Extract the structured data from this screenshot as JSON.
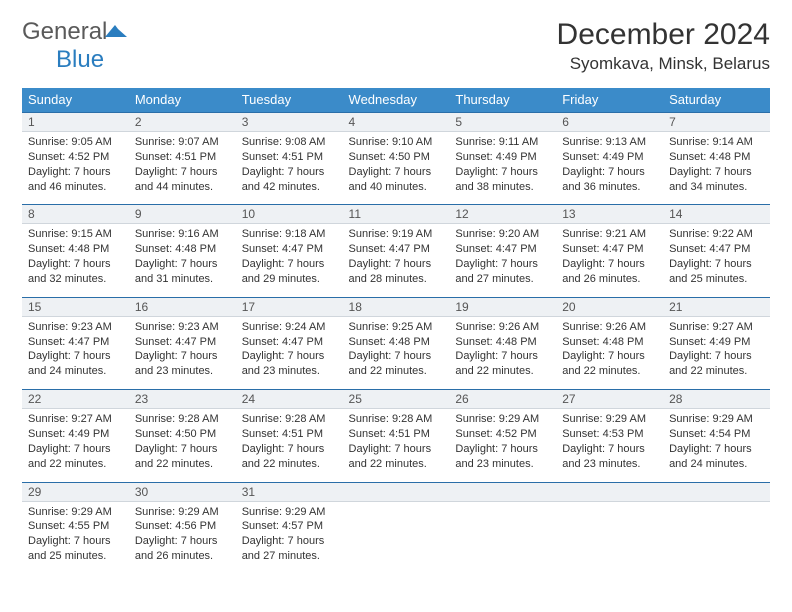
{
  "logo": {
    "word1": "General",
    "word2": "Blue"
  },
  "title": "December 2024",
  "location": "Syomkava, Minsk, Belarus",
  "colors": {
    "header_bg": "#3b8bc9",
    "header_text": "#ffffff",
    "numbar_bg": "#eef1f4",
    "numbar_border_top": "#2a6ea8",
    "body_text": "#333333",
    "logo_general": "#5a5a5a",
    "logo_blue": "#2a7dbf"
  },
  "day_headers": [
    "Sunday",
    "Monday",
    "Tuesday",
    "Wednesday",
    "Thursday",
    "Friday",
    "Saturday"
  ],
  "weeks": [
    [
      {
        "n": "1",
        "sr": "Sunrise: 9:05 AM",
        "ss": "Sunset: 4:52 PM",
        "d1": "Daylight: 7 hours",
        "d2": "and 46 minutes."
      },
      {
        "n": "2",
        "sr": "Sunrise: 9:07 AM",
        "ss": "Sunset: 4:51 PM",
        "d1": "Daylight: 7 hours",
        "d2": "and 44 minutes."
      },
      {
        "n": "3",
        "sr": "Sunrise: 9:08 AM",
        "ss": "Sunset: 4:51 PM",
        "d1": "Daylight: 7 hours",
        "d2": "and 42 minutes."
      },
      {
        "n": "4",
        "sr": "Sunrise: 9:10 AM",
        "ss": "Sunset: 4:50 PM",
        "d1": "Daylight: 7 hours",
        "d2": "and 40 minutes."
      },
      {
        "n": "5",
        "sr": "Sunrise: 9:11 AM",
        "ss": "Sunset: 4:49 PM",
        "d1": "Daylight: 7 hours",
        "d2": "and 38 minutes."
      },
      {
        "n": "6",
        "sr": "Sunrise: 9:13 AM",
        "ss": "Sunset: 4:49 PM",
        "d1": "Daylight: 7 hours",
        "d2": "and 36 minutes."
      },
      {
        "n": "7",
        "sr": "Sunrise: 9:14 AM",
        "ss": "Sunset: 4:48 PM",
        "d1": "Daylight: 7 hours",
        "d2": "and 34 minutes."
      }
    ],
    [
      {
        "n": "8",
        "sr": "Sunrise: 9:15 AM",
        "ss": "Sunset: 4:48 PM",
        "d1": "Daylight: 7 hours",
        "d2": "and 32 minutes."
      },
      {
        "n": "9",
        "sr": "Sunrise: 9:16 AM",
        "ss": "Sunset: 4:48 PM",
        "d1": "Daylight: 7 hours",
        "d2": "and 31 minutes."
      },
      {
        "n": "10",
        "sr": "Sunrise: 9:18 AM",
        "ss": "Sunset: 4:47 PM",
        "d1": "Daylight: 7 hours",
        "d2": "and 29 minutes."
      },
      {
        "n": "11",
        "sr": "Sunrise: 9:19 AM",
        "ss": "Sunset: 4:47 PM",
        "d1": "Daylight: 7 hours",
        "d2": "and 28 minutes."
      },
      {
        "n": "12",
        "sr": "Sunrise: 9:20 AM",
        "ss": "Sunset: 4:47 PM",
        "d1": "Daylight: 7 hours",
        "d2": "and 27 minutes."
      },
      {
        "n": "13",
        "sr": "Sunrise: 9:21 AM",
        "ss": "Sunset: 4:47 PM",
        "d1": "Daylight: 7 hours",
        "d2": "and 26 minutes."
      },
      {
        "n": "14",
        "sr": "Sunrise: 9:22 AM",
        "ss": "Sunset: 4:47 PM",
        "d1": "Daylight: 7 hours",
        "d2": "and 25 minutes."
      }
    ],
    [
      {
        "n": "15",
        "sr": "Sunrise: 9:23 AM",
        "ss": "Sunset: 4:47 PM",
        "d1": "Daylight: 7 hours",
        "d2": "and 24 minutes."
      },
      {
        "n": "16",
        "sr": "Sunrise: 9:23 AM",
        "ss": "Sunset: 4:47 PM",
        "d1": "Daylight: 7 hours",
        "d2": "and 23 minutes."
      },
      {
        "n": "17",
        "sr": "Sunrise: 9:24 AM",
        "ss": "Sunset: 4:47 PM",
        "d1": "Daylight: 7 hours",
        "d2": "and 23 minutes."
      },
      {
        "n": "18",
        "sr": "Sunrise: 9:25 AM",
        "ss": "Sunset: 4:48 PM",
        "d1": "Daylight: 7 hours",
        "d2": "and 22 minutes."
      },
      {
        "n": "19",
        "sr": "Sunrise: 9:26 AM",
        "ss": "Sunset: 4:48 PM",
        "d1": "Daylight: 7 hours",
        "d2": "and 22 minutes."
      },
      {
        "n": "20",
        "sr": "Sunrise: 9:26 AM",
        "ss": "Sunset: 4:48 PM",
        "d1": "Daylight: 7 hours",
        "d2": "and 22 minutes."
      },
      {
        "n": "21",
        "sr": "Sunrise: 9:27 AM",
        "ss": "Sunset: 4:49 PM",
        "d1": "Daylight: 7 hours",
        "d2": "and 22 minutes."
      }
    ],
    [
      {
        "n": "22",
        "sr": "Sunrise: 9:27 AM",
        "ss": "Sunset: 4:49 PM",
        "d1": "Daylight: 7 hours",
        "d2": "and 22 minutes."
      },
      {
        "n": "23",
        "sr": "Sunrise: 9:28 AM",
        "ss": "Sunset: 4:50 PM",
        "d1": "Daylight: 7 hours",
        "d2": "and 22 minutes."
      },
      {
        "n": "24",
        "sr": "Sunrise: 9:28 AM",
        "ss": "Sunset: 4:51 PM",
        "d1": "Daylight: 7 hours",
        "d2": "and 22 minutes."
      },
      {
        "n": "25",
        "sr": "Sunrise: 9:28 AM",
        "ss": "Sunset: 4:51 PM",
        "d1": "Daylight: 7 hours",
        "d2": "and 22 minutes."
      },
      {
        "n": "26",
        "sr": "Sunrise: 9:29 AM",
        "ss": "Sunset: 4:52 PM",
        "d1": "Daylight: 7 hours",
        "d2": "and 23 minutes."
      },
      {
        "n": "27",
        "sr": "Sunrise: 9:29 AM",
        "ss": "Sunset: 4:53 PM",
        "d1": "Daylight: 7 hours",
        "d2": "and 23 minutes."
      },
      {
        "n": "28",
        "sr": "Sunrise: 9:29 AM",
        "ss": "Sunset: 4:54 PM",
        "d1": "Daylight: 7 hours",
        "d2": "and 24 minutes."
      }
    ],
    [
      {
        "n": "29",
        "sr": "Sunrise: 9:29 AM",
        "ss": "Sunset: 4:55 PM",
        "d1": "Daylight: 7 hours",
        "d2": "and 25 minutes."
      },
      {
        "n": "30",
        "sr": "Sunrise: 9:29 AM",
        "ss": "Sunset: 4:56 PM",
        "d1": "Daylight: 7 hours",
        "d2": "and 26 minutes."
      },
      {
        "n": "31",
        "sr": "Sunrise: 9:29 AM",
        "ss": "Sunset: 4:57 PM",
        "d1": "Daylight: 7 hours",
        "d2": "and 27 minutes."
      },
      null,
      null,
      null,
      null
    ]
  ]
}
